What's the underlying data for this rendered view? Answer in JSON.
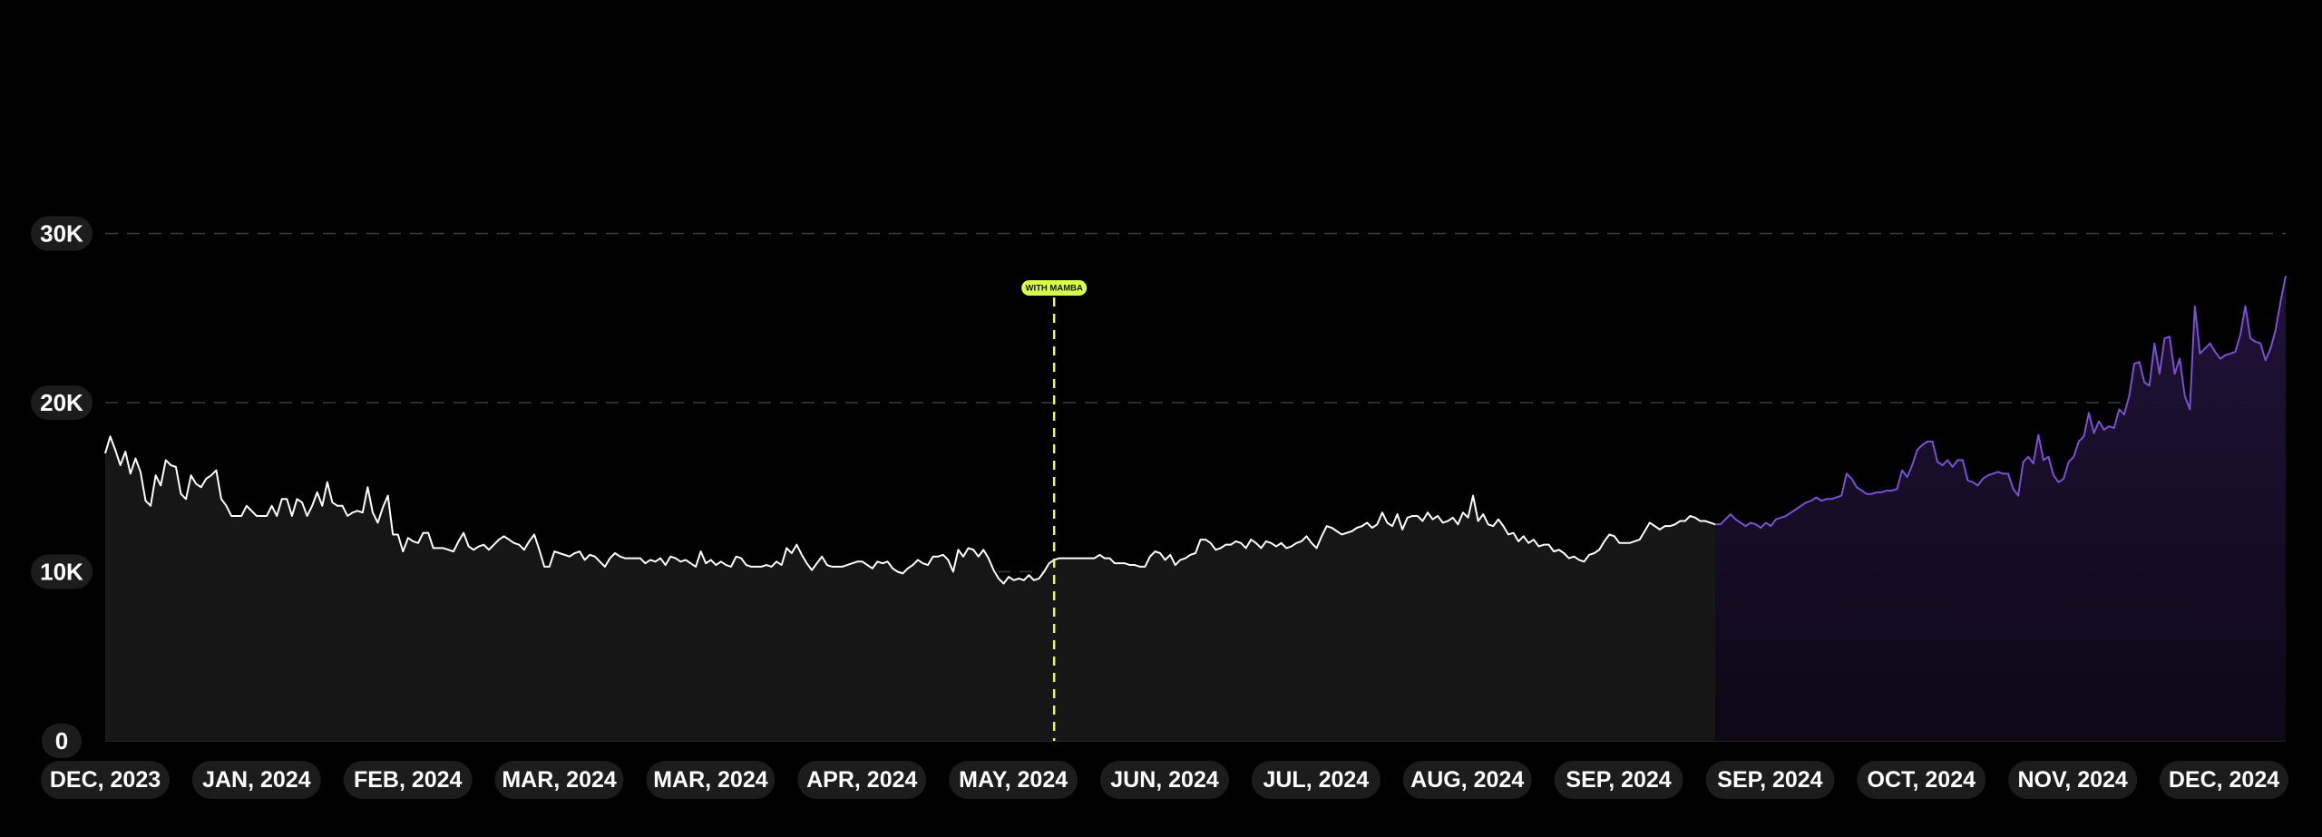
{
  "chart_data": {
    "type": "area",
    "title": "",
    "xlabel": "",
    "ylabel": "",
    "ylim": [
      0,
      30000
    ],
    "grid": true,
    "y_ticks": [
      {
        "value": 0,
        "label": "0"
      },
      {
        "value": 10000,
        "label": "10K"
      },
      {
        "value": 20000,
        "label": "20K"
      },
      {
        "value": 30000,
        "label": "30K"
      }
    ],
    "x_tick_labels": [
      "DEC, 2023",
      "JAN, 2024",
      "FEB, 2024",
      "MAR, 2024",
      "MAR, 2024",
      "APR, 2024",
      "MAY, 2024",
      "JUN, 2024",
      "JUL, 2024",
      "AUG, 2024",
      "SEP, 2024",
      "SEP, 2024",
      "OCT, 2024",
      "NOV, 2024",
      "DEC, 2024"
    ],
    "annotation": {
      "label": "WITH MAMBA",
      "at_index": 188
    },
    "colors": {
      "before": "#ffffff",
      "after": "#7b4fd6",
      "annotation": "#d9ff4a",
      "grid": "#3a3a3a",
      "pill_bg": "#1c1c1c",
      "area_before": "#161616",
      "area_after": "#1a1028"
    },
    "series": [
      {
        "values": [
          17000,
          18000,
          17200,
          16300,
          17100,
          15800,
          16700,
          15900,
          14200,
          13900,
          15700,
          15100,
          16600,
          16300,
          16200,
          14600,
          14300,
          15700,
          15200,
          15000,
          15500,
          15700,
          16000,
          14300,
          13900,
          13300,
          13300,
          13300,
          13900,
          13600,
          13300,
          13300,
          13300,
          13900,
          13300,
          14300,
          14300,
          13300,
          14300,
          14100,
          13300,
          13900,
          14700,
          13900,
          15300,
          14100,
          13900,
          13900,
          13300,
          13500,
          13600,
          13500,
          15000,
          13500,
          12900,
          13800,
          14500,
          12200,
          12200,
          11200,
          12000,
          11800,
          11700,
          12300,
          12300,
          11400,
          11400,
          11400,
          11300,
          11200,
          11800,
          12300,
          11500,
          11300,
          11500,
          11600,
          11300,
          11600,
          11900,
          12100,
          11900,
          11700,
          11600,
          11300,
          11800,
          12200,
          11300,
          10300,
          10300,
          11200,
          11100,
          11000,
          10900,
          11100,
          11200,
          10700,
          11000,
          10900,
          10600,
          10300,
          10800,
          11100,
          10900,
          10800,
          10800,
          10800,
          10800,
          10500,
          10700,
          10600,
          10800,
          10400,
          10900,
          10800,
          10600,
          10700,
          10500,
          10300,
          11200,
          10500,
          10700,
          10400,
          10600,
          10400,
          10300,
          10900,
          10800,
          10400,
          10300,
          10300,
          10300,
          10400,
          10300,
          10600,
          10400,
          11400,
          11100,
          11600,
          11000,
          10500,
          10100,
          10500,
          10900,
          10400,
          10300,
          10300,
          10300,
          10400,
          10500,
          10600,
          10600,
          10400,
          10200,
          10600,
          10500,
          10600,
          10200,
          10000,
          9900,
          10200,
          10400,
          10700,
          10500,
          10400,
          10900,
          10900,
          11000,
          10700,
          10000,
          11300,
          10900,
          11400,
          11300,
          10900,
          11300,
          10800,
          10100,
          9600,
          9300,
          9700,
          9500,
          9600,
          9500,
          9800,
          9500,
          9600,
          10000,
          10500,
          10700,
          10800,
          10800,
          10800,
          10800,
          10800,
          10800,
          10800,
          10800,
          11000,
          10800,
          10800,
          10500,
          10500,
          10500,
          10400,
          10400,
          10300,
          10300,
          10900,
          11200,
          11100,
          10700,
          11000,
          10400,
          10700,
          10800,
          11000,
          11100,
          11900,
          11900,
          11700,
          11300,
          11400,
          11600,
          11600,
          11800,
          11700,
          11400,
          11900,
          11700,
          11400,
          11800,
          11700,
          11500,
          11700,
          11400,
          11500,
          11700,
          11800,
          12100,
          11700,
          11400,
          12100,
          12700,
          12600,
          12400,
          12200,
          12300,
          12400,
          12600,
          12700,
          12900,
          12600,
          12800,
          13500,
          12900,
          12700,
          13400,
          12500,
          13200,
          13300,
          13300,
          13000,
          13500,
          13100,
          13300,
          12900,
          13000,
          13200,
          12800,
          13500,
          13200,
          14500,
          13000,
          13400,
          12800,
          12700,
          13100,
          12700,
          12200,
          12300,
          11800,
          12100,
          11700,
          11900,
          11500,
          11600,
          11600,
          11200,
          11300,
          11100,
          10800,
          10900,
          10700,
          10600,
          11000,
          11100,
          11300,
          11800,
          12200,
          12100,
          11700,
          11700,
          11700,
          11800,
          11900,
          12400,
          12900,
          12700,
          12500,
          12700,
          12700,
          12800,
          13000,
          13000,
          13300,
          13200,
          13000,
          13000,
          12900,
          12800
        ]
      },
      {
        "values": [
          12800,
          13100,
          13400,
          13100,
          12900,
          12700,
          12900,
          12800,
          12600,
          12900,
          12700,
          13100,
          13200,
          13300,
          13500,
          13700,
          13900,
          14100,
          14200,
          14400,
          14200,
          14300,
          14300,
          14400,
          14500,
          15800,
          15500,
          15000,
          14800,
          14600,
          14600,
          14700,
          14700,
          14800,
          14800,
          14900,
          16000,
          15600,
          16300,
          17200,
          17500,
          17700,
          17700,
          16500,
          16300,
          16600,
          16200,
          16600,
          16600,
          15400,
          15300,
          15100,
          15500,
          15700,
          15800,
          15900,
          15800,
          15800,
          14900,
          14500,
          16500,
          16800,
          16400,
          18100,
          16600,
          16800,
          15700,
          15300,
          15500,
          16500,
          16800,
          17700,
          18000,
          19400,
          18200,
          18900,
          18400,
          18600,
          18500,
          19600,
          19300,
          20400,
          22300,
          22400,
          21200,
          21000,
          23500,
          21700,
          23800,
          23900,
          21700,
          22600,
          20400,
          19600,
          25700,
          22900,
          23200,
          23500,
          23000,
          22600,
          22800,
          22900,
          23000,
          24000,
          25700,
          23800,
          23600,
          23500,
          22500,
          23200,
          24300,
          26000,
          27500
        ]
      }
    ]
  }
}
